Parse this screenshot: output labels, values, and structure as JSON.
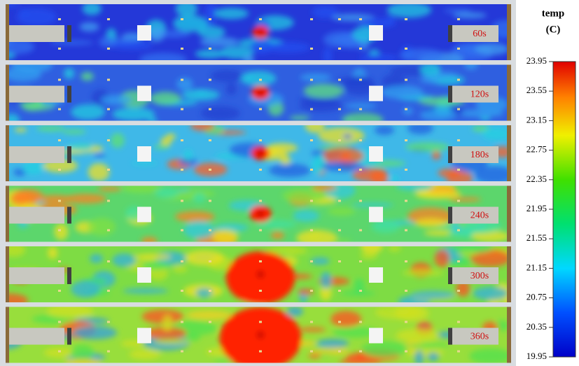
{
  "colorbar": {
    "title": "temp",
    "unit": "(C)",
    "ticks": [
      23.95,
      23.55,
      23.15,
      22.75,
      22.35,
      21.95,
      21.55,
      21.15,
      20.75,
      20.35,
      19.95
    ]
  },
  "panels": [
    {
      "label": "60s"
    },
    {
      "label": "120s"
    },
    {
      "label": "180s"
    },
    {
      "label": "240s"
    },
    {
      "label": "300s"
    },
    {
      "label": "360s"
    }
  ]
}
